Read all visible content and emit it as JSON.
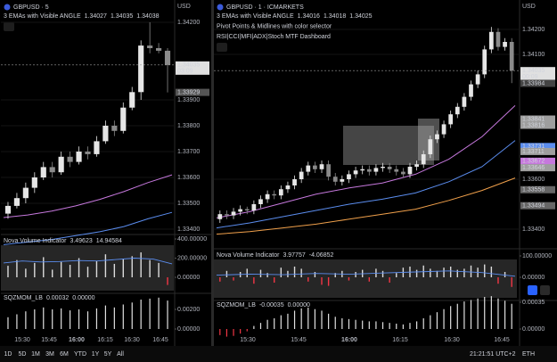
{
  "panes": [
    {
      "symbol": "GBPUSD · 5",
      "currency": "USD",
      "up_color": "#e6e6e6",
      "down_color": "#8a8a8a",
      "indicators": [
        {
          "name": "3 EMAs with Visible ANGLE",
          "readouts": [
            {
              "text": "1.34027",
              "color": "#c678dd"
            },
            {
              "text": "1.34035",
              "color": "#5b8def"
            },
            {
              "text": "1.34038",
              "color": "#f0a04b"
            }
          ]
        }
      ],
      "price_ticks": [
        {
          "value": 1.342,
          "label": "1.34200"
        },
        {
          "value": 1.339,
          "label": "1.33900"
        },
        {
          "value": 1.338,
          "label": "1.33800"
        },
        {
          "value": 1.337,
          "label": "1.33700"
        },
        {
          "value": 1.336,
          "label": "1.33600"
        },
        {
          "value": 1.335,
          "label": "1.33500"
        },
        {
          "value": 1.334,
          "label": "1.33400"
        }
      ],
      "price_tags": [
        {
          "value": 1.34035,
          "label": "1.34035",
          "sub": "03:09",
          "color": "#e0e0e0"
        },
        {
          "value": 1.33929,
          "label": "1.33929",
          "color": "#555555"
        }
      ],
      "candles": [
        [
          1.3346,
          1.33505,
          1.3344,
          1.3349
        ],
        [
          1.3349,
          1.3354,
          1.3348,
          1.3352
        ],
        [
          1.3352,
          1.3358,
          1.335,
          1.3356
        ],
        [
          1.3356,
          1.3362,
          1.3354,
          1.336
        ],
        [
          1.336,
          1.3366,
          1.3359,
          1.3364
        ],
        [
          1.3364,
          1.3366,
          1.336,
          1.3362
        ],
        [
          1.3362,
          1.337,
          1.3361,
          1.3368
        ],
        [
          1.3368,
          1.337,
          1.3364,
          1.3366
        ],
        [
          1.3366,
          1.3372,
          1.3365,
          1.337
        ],
        [
          1.337,
          1.3372,
          1.3367,
          1.3369
        ],
        [
          1.3369,
          1.3376,
          1.3368,
          1.3374
        ],
        [
          1.3374,
          1.3382,
          1.3373,
          1.338
        ],
        [
          1.338,
          1.3382,
          1.3376,
          1.3378
        ],
        [
          1.3378,
          1.3389,
          1.3377,
          1.3387
        ],
        [
          1.3387,
          1.3395,
          1.3386,
          1.3393
        ],
        [
          1.3393,
          1.3413,
          1.339,
          1.3411
        ],
        [
          1.3411,
          1.342,
          1.3408,
          1.341
        ],
        [
          1.341,
          1.3412,
          1.3408,
          1.3409
        ],
        [
          1.3409,
          1.341,
          1.33929,
          1.34035
        ]
      ],
      "emas": [
        {
          "color": "#c678dd",
          "values": [
            1.33445,
            1.33455,
            1.3347,
            1.3349,
            1.33515,
            1.33545,
            1.3358,
            1.3361
          ]
        },
        {
          "color": "#5b8def",
          "values": [
            1.3334,
            1.3335,
            1.3336,
            1.33375,
            1.3339,
            1.3341,
            1.3344,
            1.33465
          ]
        }
      ],
      "volume": {
        "name": "Nova Volume Indicator",
        "readouts": [
          {
            "text": "3.49623",
            "color": "#d1d4dc"
          },
          {
            "text": "14.94584",
            "color": "#5b8def"
          }
        ],
        "ticks": [
          {
            "value": 400,
            "label": "400.00000"
          },
          {
            "value": 200,
            "label": "200.00000"
          },
          {
            "value": 0,
            "label": "0.00000"
          }
        ],
        "bars": [
          120,
          180,
          90,
          150,
          210,
          80,
          160,
          130,
          200,
          110,
          170,
          240,
          140,
          190,
          220,
          260,
          180,
          150,
          -80
        ],
        "line": [
          150,
          170,
          160,
          165,
          175,
          170,
          185,
          200,
          190,
          140
        ],
        "bar_color": "#dcdcdc",
        "neg_color": "#f23645",
        "line_color": "#5b8def"
      },
      "sqz": {
        "name": "SQZMOM_LB",
        "readouts": [
          {
            "text": "0.00032",
            "color": "#d1d4dc"
          },
          {
            "text": "0.00000",
            "color": "#f23645"
          }
        ],
        "ticks": [
          {
            "value": 0.002,
            "label": "0.00200"
          },
          {
            "value": 0,
            "label": "0.00000"
          }
        ],
        "bars": [
          0.0012,
          0.0015,
          0.0018,
          0.002,
          0.0022,
          0.002,
          0.0021,
          0.0019,
          0.002,
          0.0018,
          0.0021,
          0.0024,
          0.0022,
          0.0025,
          0.0027,
          0.003,
          0.0031,
          0.0032,
          0.0029
        ],
        "bar_color": "#e0e0e0",
        "neg_color": "#f23645"
      },
      "times": [
        "15:30",
        "15:45",
        "16:00",
        "16:15",
        "16:30",
        "16:45"
      ]
    },
    {
      "symbol": "GBPUSD · 1 · ICMARKETS",
      "currency": "USD",
      "up_color": "#e6e6e6",
      "down_color": "#8a8a8a",
      "indicators": [
        {
          "name": "3 EMAs with Visible ANGLE",
          "readouts": [
            {
              "text": "1.34016",
              "color": "#c678dd"
            },
            {
              "text": "1.34018",
              "color": "#5b8def"
            },
            {
              "text": "1.34025",
              "color": "#f0a04b"
            }
          ]
        },
        {
          "name": "Pivot Points & Midlines with color selector",
          "readouts": []
        },
        {
          "name": "RSI|CCI|MFI|ADX|Stoch MTF Dashboard",
          "readouts": []
        }
      ],
      "price_ticks": [
        {
          "value": 1.342,
          "label": "1.34200"
        },
        {
          "value": 1.341,
          "label": "1.34100"
        },
        {
          "value": 1.336,
          "label": "1.33600"
        },
        {
          "value": 1.334,
          "label": "1.33400"
        }
      ],
      "price_tags": [
        {
          "value": 1.34035,
          "label": "1.34035",
          "sub": "00:09",
          "color": "#e0e0e0"
        },
        {
          "value": 1.33984,
          "label": "1.33984",
          "color": "#444444"
        },
        {
          "value": 1.33841,
          "label": "1.33841",
          "color": "#9e9e9e"
        },
        {
          "value": 1.33816,
          "label": "1.33816",
          "color": "#9e9e9e"
        },
        {
          "value": 1.33731,
          "label": "1.33731",
          "color": "#5b8def"
        },
        {
          "value": 1.33711,
          "label": "1.33711",
          "color": "#9e9e9e"
        },
        {
          "value": 1.33672,
          "label": "1.33672",
          "color": "#c678dd"
        },
        {
          "value": 1.33646,
          "label": "1.33646",
          "color": "#9e9e9e"
        },
        {
          "value": 1.33558,
          "label": "1.33558",
          "color": "#666666"
        },
        {
          "value": 1.33494,
          "label": "1.33494",
          "color": "#666666"
        }
      ],
      "candles": [
        [
          1.3344,
          1.33475,
          1.33425,
          1.3346
        ],
        [
          1.3346,
          1.33475,
          1.3344,
          1.33455
        ],
        [
          1.33455,
          1.33485,
          1.3344,
          1.3347
        ],
        [
          1.3347,
          1.33495,
          1.33455,
          1.3348
        ],
        [
          1.3348,
          1.3349,
          1.3346,
          1.33475
        ],
        [
          1.33475,
          1.33515,
          1.3346,
          1.335
        ],
        [
          1.335,
          1.33535,
          1.33485,
          1.3352
        ],
        [
          1.3352,
          1.33555,
          1.33505,
          1.3354
        ],
        [
          1.3354,
          1.33555,
          1.3352,
          1.33535
        ],
        [
          1.33535,
          1.33575,
          1.3352,
          1.3356
        ],
        [
          1.3356,
          1.3359,
          1.33545,
          1.33575
        ],
        [
          1.33575,
          1.33615,
          1.3356,
          1.336
        ],
        [
          1.336,
          1.33645,
          1.33585,
          1.3363
        ],
        [
          1.3363,
          1.3367,
          1.33615,
          1.33655
        ],
        [
          1.33655,
          1.3367,
          1.33625,
          1.3364
        ],
        [
          1.3364,
          1.33675,
          1.33625,
          1.3366
        ],
        [
          1.3366,
          1.33675,
          1.33595,
          1.3361
        ],
        [
          1.3361,
          1.33625,
          1.33575,
          1.3359
        ],
        [
          1.3359,
          1.33615,
          1.33575,
          1.336
        ],
        [
          1.336,
          1.33635,
          1.33585,
          1.3362
        ],
        [
          1.3362,
          1.3365,
          1.33605,
          1.33635
        ],
        [
          1.33635,
          1.33655,
          1.3362,
          1.3364
        ],
        [
          1.3364,
          1.33655,
          1.33615,
          1.3363
        ],
        [
          1.3363,
          1.3366,
          1.33615,
          1.33645
        ],
        [
          1.33645,
          1.33665,
          1.3363,
          1.3365
        ],
        [
          1.3365,
          1.33665,
          1.33625,
          1.3364
        ],
        [
          1.3364,
          1.33655,
          1.33615,
          1.3363
        ],
        [
          1.3363,
          1.33645,
          1.33605,
          1.3362
        ],
        [
          1.3362,
          1.33665,
          1.33605,
          1.3365
        ],
        [
          1.3365,
          1.33675,
          1.33635,
          1.3366
        ],
        [
          1.3366,
          1.33715,
          1.33645,
          1.337
        ],
        [
          1.337,
          1.33775,
          1.33685,
          1.3376
        ],
        [
          1.3376,
          1.33795,
          1.33745,
          1.3378
        ],
        [
          1.3378,
          1.33835,
          1.33765,
          1.3382
        ],
        [
          1.3382,
          1.33875,
          1.33805,
          1.3386
        ],
        [
          1.3386,
          1.33905,
          1.33845,
          1.3389
        ],
        [
          1.3389,
          1.33945,
          1.33875,
          1.3393
        ],
        [
          1.3393,
          1.33995,
          1.33915,
          1.3398
        ],
        [
          1.3398,
          1.34035,
          1.33965,
          1.3402
        ],
        [
          1.3402,
          1.34135,
          1.34005,
          1.3412
        ],
        [
          1.3412,
          1.3421,
          1.34105,
          1.3419
        ],
        [
          1.3419,
          1.34205,
          1.34115,
          1.3413
        ],
        [
          1.3413,
          1.34165,
          1.34115,
          1.3415
        ],
        [
          1.3415,
          1.34165,
          1.33985,
          1.34035
        ]
      ],
      "emas": [
        {
          "color": "#c678dd",
          "values": [
            1.33445,
            1.3347,
            1.33505,
            1.3354,
            1.33565,
            1.33585,
            1.3362,
            1.3368,
            1.3377,
            1.33895
          ]
        },
        {
          "color": "#5b8def",
          "values": [
            1.33405,
            1.33425,
            1.3345,
            1.33475,
            1.335,
            1.3352,
            1.33545,
            1.3359,
            1.3365,
            1.33755
          ]
        },
        {
          "color": "#f0a04b",
          "values": [
            1.3338,
            1.3339,
            1.33405,
            1.3342,
            1.3344,
            1.3346,
            1.3348,
            1.33515,
            1.33555,
            1.33605
          ]
        }
      ],
      "volume": {
        "name": "Nova Volume Indicator",
        "readouts": [
          {
            "text": "3.97757",
            "color": "#d1d4dc"
          },
          {
            "text": "-4.06852",
            "color": "#5b8def"
          }
        ],
        "ticks": [
          {
            "value": 100,
            "label": "100.00000"
          },
          {
            "value": 0,
            "label": "0.00000"
          }
        ],
        "bars": [
          -20,
          30,
          -15,
          25,
          40,
          -30,
          35,
          20,
          -25,
          45,
          30,
          50,
          40,
          -20,
          25,
          -35,
          -40,
          20,
          30,
          -15,
          25,
          35,
          -20,
          40,
          30,
          -25,
          20,
          45,
          50,
          35,
          55,
          40,
          30,
          45,
          50,
          35,
          40,
          55,
          45,
          60,
          50,
          -30,
          25,
          -45
        ],
        "line": [
          10,
          15,
          12,
          18,
          14,
          20,
          25,
          30,
          22,
          5
        ],
        "bar_color": "#dcdcdc",
        "neg_color": "#f23645",
        "line_color": "#5b8def"
      },
      "sqz": {
        "name": "SQZMOM_LB",
        "readouts": [
          {
            "text": "-0.00035",
            "color": "#f23645"
          },
          {
            "text": "0.00000",
            "color": "#d1d4dc"
          }
        ],
        "ticks": [
          {
            "value": 0.00035,
            "label": "0.00035"
          },
          {
            "value": 0,
            "label": "0.00000"
          }
        ],
        "bars": [
          -8e-05,
          -0.0001,
          -9e-05,
          -6e-05,
          -3e-05,
          4e-05,
          8e-05,
          0.00012,
          0.00014,
          0.00018,
          0.0002,
          0.00024,
          0.00027,
          0.00028,
          0.00026,
          0.00024,
          0.0002,
          0.00016,
          0.00014,
          0.00013,
          0.00012,
          0.00011,
          0.0001,
          0.0001,
          9e-05,
          8e-05,
          7e-05,
          6e-05,
          8e-05,
          0.0001,
          0.00014,
          0.00018,
          0.00022,
          0.00026,
          0.0003,
          0.00033,
          0.00036,
          0.00038,
          0.0004,
          0.00042,
          0.00043,
          0.0004,
          0.00037,
          0.00033
        ],
        "bar_color": "#e0e0e0",
        "neg_color": "#f23645"
      },
      "times": [
        "15:30",
        "15:45",
        "16:00",
        "16:15",
        "16:30",
        "16:45"
      ]
    }
  ],
  "toolbar": {
    "ranges": [
      "1D",
      "5D",
      "1M",
      "3M",
      "6M",
      "YTD",
      "1Y",
      "5Y",
      "All"
    ],
    "clock": "21:21:51 UTC+2",
    "session": "ETH"
  }
}
